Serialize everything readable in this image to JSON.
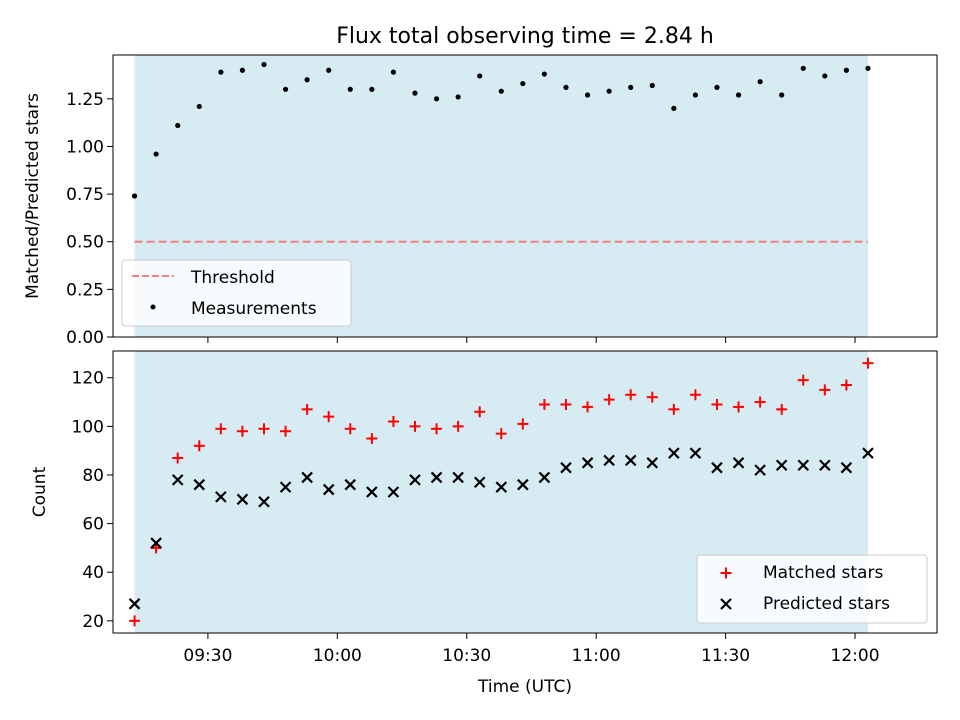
{
  "chart_data": [
    {
      "type": "scatter",
      "title": "Flux total observing time = 2.84 h",
      "ylabel": "Matched/Predicted stars",
      "ylim": [
        0,
        1.48
      ],
      "yticks": [
        0.0,
        0.25,
        0.5,
        0.75,
        1.0,
        1.25
      ],
      "ytick_labels": [
        "0.00",
        "0.25",
        "0.50",
        "0.75",
        "1.00",
        "1.25"
      ],
      "xlim": [
        "09:08",
        "12:19"
      ],
      "xticks": [
        "09:30",
        "10:00",
        "10:30",
        "11:00",
        "11:30",
        "12:00"
      ],
      "xticks_labeled": false,
      "shaded_span": [
        "09:13",
        "12:03"
      ],
      "shade_color": "#add8e6",
      "threshold": {
        "name": "Threshold",
        "value": 0.5,
        "color": "#f08080"
      },
      "series": [
        {
          "name": "Measurements",
          "color": "#000000",
          "x": [
            "09:13",
            "09:18",
            "09:23",
            "09:28",
            "09:33",
            "09:38",
            "09:43",
            "09:48",
            "09:53",
            "09:58",
            "10:03",
            "10:08",
            "10:13",
            "10:18",
            "10:23",
            "10:28",
            "10:33",
            "10:38",
            "10:43",
            "10:48",
            "10:53",
            "10:58",
            "11:03",
            "11:08",
            "11:13",
            "11:18",
            "11:23",
            "11:28",
            "11:33",
            "11:38",
            "11:43",
            "11:48",
            "11:53",
            "11:58",
            "12:03"
          ],
          "y": [
            0.74,
            0.96,
            1.11,
            1.21,
            1.39,
            1.4,
            1.43,
            1.3,
            1.35,
            1.4,
            1.3,
            1.3,
            1.39,
            1.28,
            1.25,
            1.26,
            1.37,
            1.29,
            1.33,
            1.38,
            1.31,
            1.27,
            1.29,
            1.31,
            1.32,
            1.2,
            1.27,
            1.31,
            1.27,
            1.34,
            1.27,
            1.41,
            1.37,
            1.4,
            1.41
          ]
        }
      ],
      "legend_position": "lower-left"
    },
    {
      "type": "scatter",
      "title": "",
      "xlabel": "Time (UTC)",
      "ylabel": "Count",
      "ylim": [
        15,
        131
      ],
      "yticks": [
        20,
        40,
        60,
        80,
        100,
        120
      ],
      "ytick_labels": [
        "20",
        "40",
        "60",
        "80",
        "100",
        "120"
      ],
      "xlim": [
        "09:08",
        "12:19"
      ],
      "xticks": [
        "09:30",
        "10:00",
        "10:30",
        "11:00",
        "11:30",
        "12:00"
      ],
      "xtick_labels": [
        "09:30",
        "10:00",
        "10:30",
        "11:00",
        "11:30",
        "12:00"
      ],
      "shaded_span": [
        "09:13",
        "12:03"
      ],
      "shade_color": "#add8e6",
      "series": [
        {
          "name": "Matched stars",
          "marker": "plus",
          "color": "#ff0000",
          "x": [
            "09:13",
            "09:18",
            "09:23",
            "09:28",
            "09:33",
            "09:38",
            "09:43",
            "09:48",
            "09:53",
            "09:58",
            "10:03",
            "10:08",
            "10:13",
            "10:18",
            "10:23",
            "10:28",
            "10:33",
            "10:38",
            "10:43",
            "10:48",
            "10:53",
            "10:58",
            "11:03",
            "11:08",
            "11:13",
            "11:18",
            "11:23",
            "11:28",
            "11:33",
            "11:38",
            "11:43",
            "11:48",
            "11:53",
            "11:58",
            "12:03"
          ],
          "y": [
            20,
            50,
            87,
            92,
            99,
            98,
            99,
            98,
            107,
            104,
            99,
            95,
            102,
            100,
            99,
            100,
            106,
            97,
            101,
            109,
            109,
            108,
            111,
            113,
            112,
            107,
            113,
            109,
            108,
            110,
            107,
            119,
            115,
            117,
            126
          ]
        },
        {
          "name": "Predicted stars",
          "marker": "x",
          "color": "#000000",
          "x": [
            "09:13",
            "09:18",
            "09:23",
            "09:28",
            "09:33",
            "09:38",
            "09:43",
            "09:48",
            "09:53",
            "09:58",
            "10:03",
            "10:08",
            "10:13",
            "10:18",
            "10:23",
            "10:28",
            "10:33",
            "10:38",
            "10:43",
            "10:48",
            "10:53",
            "10:58",
            "11:03",
            "11:08",
            "11:13",
            "11:18",
            "11:23",
            "11:28",
            "11:33",
            "11:38",
            "11:43",
            "11:48",
            "11:53",
            "11:58",
            "12:03"
          ],
          "y": [
            27,
            52,
            78,
            76,
            71,
            70,
            69,
            75,
            79,
            74,
            76,
            73,
            73,
            78,
            79,
            79,
            77,
            75,
            76,
            79,
            83,
            85,
            86,
            86,
            85,
            89,
            89,
            83,
            85,
            82,
            84,
            84,
            84,
            83,
            89
          ]
        }
      ],
      "legend_position": "lower-right"
    }
  ]
}
